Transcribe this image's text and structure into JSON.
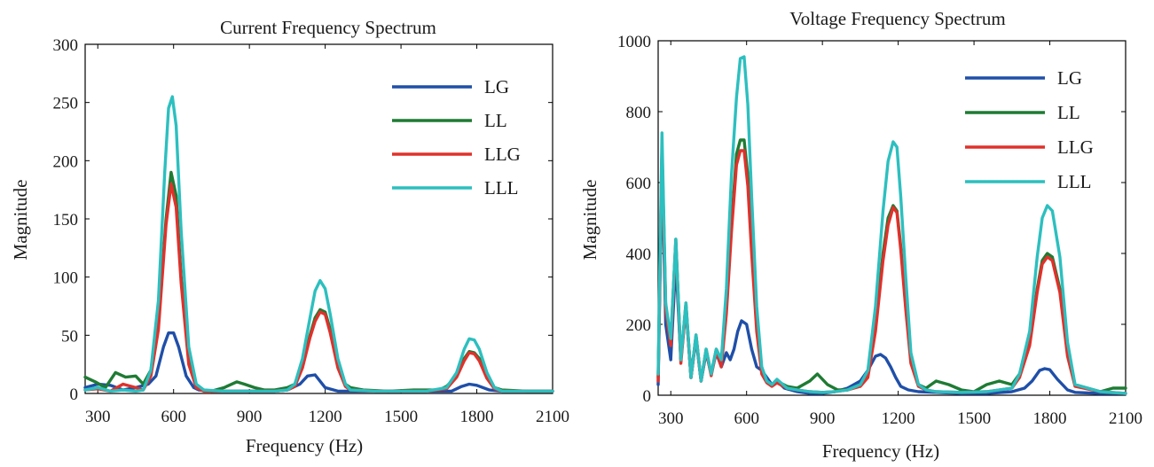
{
  "colors": {
    "LG": "#1f4fa8",
    "LL": "#1e7b33",
    "LLG": "#e0312b",
    "LLL": "#2dbfbf"
  },
  "chart_data": [
    {
      "type": "line",
      "title": "Current Frequency Spectrum",
      "xlabel": "Frequency (Hz)",
      "ylabel": "Magnitude",
      "xlim": [
        250,
        2100
      ],
      "ylim": [
        0,
        300
      ],
      "xticks": [
        300,
        600,
        900,
        1200,
        1500,
        1800,
        2100
      ],
      "yticks": [
        0,
        50,
        100,
        150,
        200,
        250,
        300
      ],
      "legend_position": "top-right",
      "grid": false,
      "series": [
        {
          "name": "LG",
          "color": "#1f4fa8",
          "x": [
            250,
            300,
            350,
            400,
            450,
            500,
            530,
            560,
            580,
            600,
            620,
            650,
            680,
            700,
            750,
            800,
            900,
            1000,
            1050,
            1100,
            1130,
            1160,
            1200,
            1250,
            1300,
            1500,
            1650,
            1700,
            1740,
            1770,
            1800,
            1850,
            1900,
            2100
          ],
          "y": [
            5,
            8,
            7,
            3,
            5,
            8,
            15,
            40,
            52,
            52,
            40,
            15,
            5,
            3,
            2,
            2,
            2,
            2,
            3,
            8,
            15,
            16,
            5,
            2,
            2,
            2,
            2,
            2,
            6,
            8,
            7,
            3,
            2,
            2
          ]
        },
        {
          "name": "LL",
          "color": "#1e7b33",
          "x": [
            250,
            290,
            330,
            370,
            410,
            450,
            480,
            510,
            540,
            570,
            590,
            610,
            630,
            660,
            690,
            720,
            750,
            800,
            850,
            880,
            920,
            960,
            1000,
            1050,
            1080,
            1110,
            1140,
            1160,
            1180,
            1200,
            1220,
            1250,
            1280,
            1300,
            1350,
            1450,
            1550,
            1600,
            1650,
            1680,
            1720,
            1750,
            1770,
            1790,
            1810,
            1840,
            1870,
            1900,
            2000,
            2100
          ],
          "y": [
            14,
            10,
            5,
            18,
            14,
            15,
            8,
            20,
            60,
            150,
            190,
            170,
            100,
            30,
            5,
            3,
            2,
            5,
            10,
            8,
            5,
            3,
            3,
            5,
            8,
            25,
            50,
            65,
            72,
            70,
            55,
            25,
            8,
            5,
            3,
            2,
            3,
            3,
            3,
            6,
            15,
            30,
            36,
            35,
            30,
            15,
            5,
            3,
            2,
            2
          ]
        },
        {
          "name": "LLG",
          "color": "#e0312b",
          "x": [
            250,
            300,
            350,
            400,
            450,
            480,
            510,
            540,
            570,
            590,
            610,
            630,
            660,
            690,
            720,
            800,
            900,
            1000,
            1050,
            1080,
            1110,
            1140,
            1160,
            1180,
            1200,
            1220,
            1250,
            1280,
            1300,
            1400,
            1600,
            1680,
            1720,
            1750,
            1770,
            1790,
            1810,
            1840,
            1870,
            1900,
            2100
          ],
          "y": [
            3,
            4,
            2,
            8,
            5,
            3,
            15,
            55,
            145,
            180,
            160,
            95,
            25,
            5,
            2,
            2,
            2,
            2,
            3,
            6,
            22,
            48,
            62,
            70,
            68,
            52,
            22,
            6,
            3,
            2,
            2,
            4,
            14,
            28,
            35,
            34,
            28,
            13,
            4,
            2,
            2
          ]
        },
        {
          "name": "LLL",
          "color": "#2dbfbf",
          "x": [
            250,
            300,
            350,
            400,
            450,
            480,
            510,
            540,
            565,
            580,
            595,
            610,
            630,
            660,
            690,
            720,
            800,
            900,
            1000,
            1050,
            1080,
            1110,
            1140,
            1160,
            1180,
            1200,
            1220,
            1250,
            1280,
            1300,
            1400,
            1600,
            1680,
            1720,
            1750,
            1770,
            1790,
            1810,
            1840,
            1870,
            1900,
            2100
          ],
          "y": [
            3,
            5,
            2,
            3,
            2,
            3,
            20,
            80,
            190,
            245,
            255,
            230,
            140,
            40,
            8,
            3,
            2,
            2,
            2,
            3,
            8,
            30,
            65,
            88,
            97,
            90,
            68,
            30,
            8,
            3,
            2,
            2,
            5,
            18,
            38,
            47,
            46,
            38,
            18,
            5,
            2,
            2
          ]
        }
      ]
    },
    {
      "type": "line",
      "title": "Voltage Frequency Spectrum",
      "xlabel": "Frequency (Hz)",
      "ylabel": "Magnitude",
      "xlim": [
        250,
        2100
      ],
      "ylim": [
        0,
        1000
      ],
      "xticks": [
        300,
        600,
        900,
        1200,
        1500,
        1800,
        2100
      ],
      "yticks": [
        0,
        200,
        400,
        600,
        800,
        1000
      ],
      "legend_position": "top-right",
      "grid": false,
      "series": [
        {
          "name": "LG",
          "color": "#1f4fa8",
          "x": [
            250,
            265,
            280,
            300,
            320,
            340,
            360,
            380,
            400,
            420,
            440,
            460,
            480,
            500,
            520,
            535,
            550,
            565,
            580,
            600,
            620,
            640,
            660,
            680,
            700,
            720,
            750,
            800,
            850,
            900,
            950,
            1000,
            1050,
            1080,
            1110,
            1130,
            1150,
            1170,
            1190,
            1210,
            1240,
            1280,
            1350,
            1450,
            1550,
            1650,
            1700,
            1730,
            1760,
            1780,
            1800,
            1830,
            1870,
            1900,
            2000,
            2100
          ],
          "y": [
            30,
            650,
            200,
            100,
            380,
            100,
            250,
            50,
            160,
            40,
            120,
            60,
            120,
            80,
            120,
            100,
            130,
            180,
            210,
            200,
            130,
            80,
            70,
            50,
            30,
            40,
            20,
            10,
            5,
            5,
            10,
            20,
            40,
            70,
            110,
            115,
            105,
            80,
            50,
            25,
            15,
            10,
            8,
            5,
            5,
            10,
            20,
            40,
            70,
            75,
            72,
            45,
            15,
            8,
            5,
            5
          ]
        },
        {
          "name": "LL",
          "color": "#1e7b33",
          "x": [
            250,
            265,
            280,
            300,
            320,
            340,
            360,
            380,
            400,
            420,
            440,
            460,
            480,
            500,
            520,
            540,
            560,
            575,
            590,
            605,
            620,
            640,
            660,
            680,
            700,
            720,
            760,
            800,
            850,
            880,
            920,
            960,
            1000,
            1050,
            1080,
            1110,
            1140,
            1160,
            1180,
            1195,
            1210,
            1230,
            1250,
            1280,
            1310,
            1350,
            1400,
            1450,
            1500,
            1550,
            1600,
            1650,
            1680,
            1720,
            1750,
            1770,
            1790,
            1810,
            1840,
            1870,
            1900,
            2000,
            2050,
            2100
          ],
          "y": [
            50,
            700,
            250,
            150,
            440,
            100,
            260,
            50,
            170,
            40,
            130,
            60,
            130,
            100,
            250,
            480,
            680,
            720,
            720,
            620,
            430,
            200,
            70,
            40,
            30,
            40,
            25,
            20,
            40,
            60,
            30,
            15,
            15,
            30,
            60,
            200,
            400,
            500,
            535,
            520,
            420,
            250,
            100,
            30,
            20,
            40,
            30,
            15,
            10,
            30,
            40,
            30,
            60,
            150,
            300,
            380,
            400,
            390,
            300,
            120,
            30,
            10,
            20,
            20
          ]
        },
        {
          "name": "LLG",
          "color": "#e0312b",
          "x": [
            250,
            265,
            280,
            300,
            320,
            340,
            360,
            380,
            400,
            420,
            440,
            460,
            480,
            500,
            520,
            540,
            560,
            575,
            590,
            605,
            620,
            640,
            660,
            680,
            700,
            720,
            760,
            800,
            850,
            900,
            950,
            1000,
            1050,
            1080,
            1110,
            1140,
            1160,
            1180,
            1195,
            1210,
            1230,
            1250,
            1280,
            1310,
            1350,
            1450,
            1550,
            1650,
            1680,
            1720,
            1750,
            1770,
            1790,
            1810,
            1840,
            1870,
            1900,
            2000,
            2100
          ],
          "y": [
            40,
            690,
            240,
            140,
            430,
            90,
            250,
            50,
            165,
            40,
            125,
            55,
            125,
            80,
            230,
            460,
            650,
            690,
            690,
            590,
            400,
            180,
            60,
            35,
            25,
            35,
            20,
            15,
            10,
            8,
            10,
            15,
            25,
            50,
            180,
            380,
            480,
            530,
            515,
            410,
            240,
            90,
            25,
            15,
            10,
            8,
            10,
            20,
            50,
            140,
            290,
            370,
            390,
            380,
            290,
            110,
            25,
            10,
            5
          ]
        },
        {
          "name": "LLL",
          "color": "#2dbfbf",
          "x": [
            250,
            265,
            280,
            300,
            320,
            340,
            360,
            380,
            400,
            420,
            440,
            460,
            480,
            500,
            520,
            540,
            560,
            575,
            590,
            605,
            620,
            640,
            660,
            680,
            700,
            720,
            760,
            800,
            850,
            900,
            950,
            1000,
            1050,
            1080,
            1110,
            1140,
            1160,
            1180,
            1195,
            1210,
            1230,
            1250,
            1280,
            1310,
            1350,
            1450,
            1550,
            1650,
            1680,
            1720,
            1750,
            1770,
            1790,
            1810,
            1840,
            1870,
            1900,
            2000,
            2100
          ],
          "y": [
            60,
            740,
            260,
            160,
            440,
            100,
            260,
            50,
            170,
            40,
            130,
            60,
            130,
            100,
            300,
            620,
            840,
            950,
            955,
            820,
            560,
            250,
            80,
            40,
            30,
            45,
            20,
            15,
            10,
            8,
            10,
            15,
            30,
            70,
            250,
            520,
            660,
            715,
            700,
            560,
            330,
            120,
            30,
            15,
            10,
            8,
            10,
            20,
            60,
            180,
            390,
            500,
            535,
            520,
            390,
            150,
            30,
            10,
            5
          ]
        }
      ]
    }
  ]
}
